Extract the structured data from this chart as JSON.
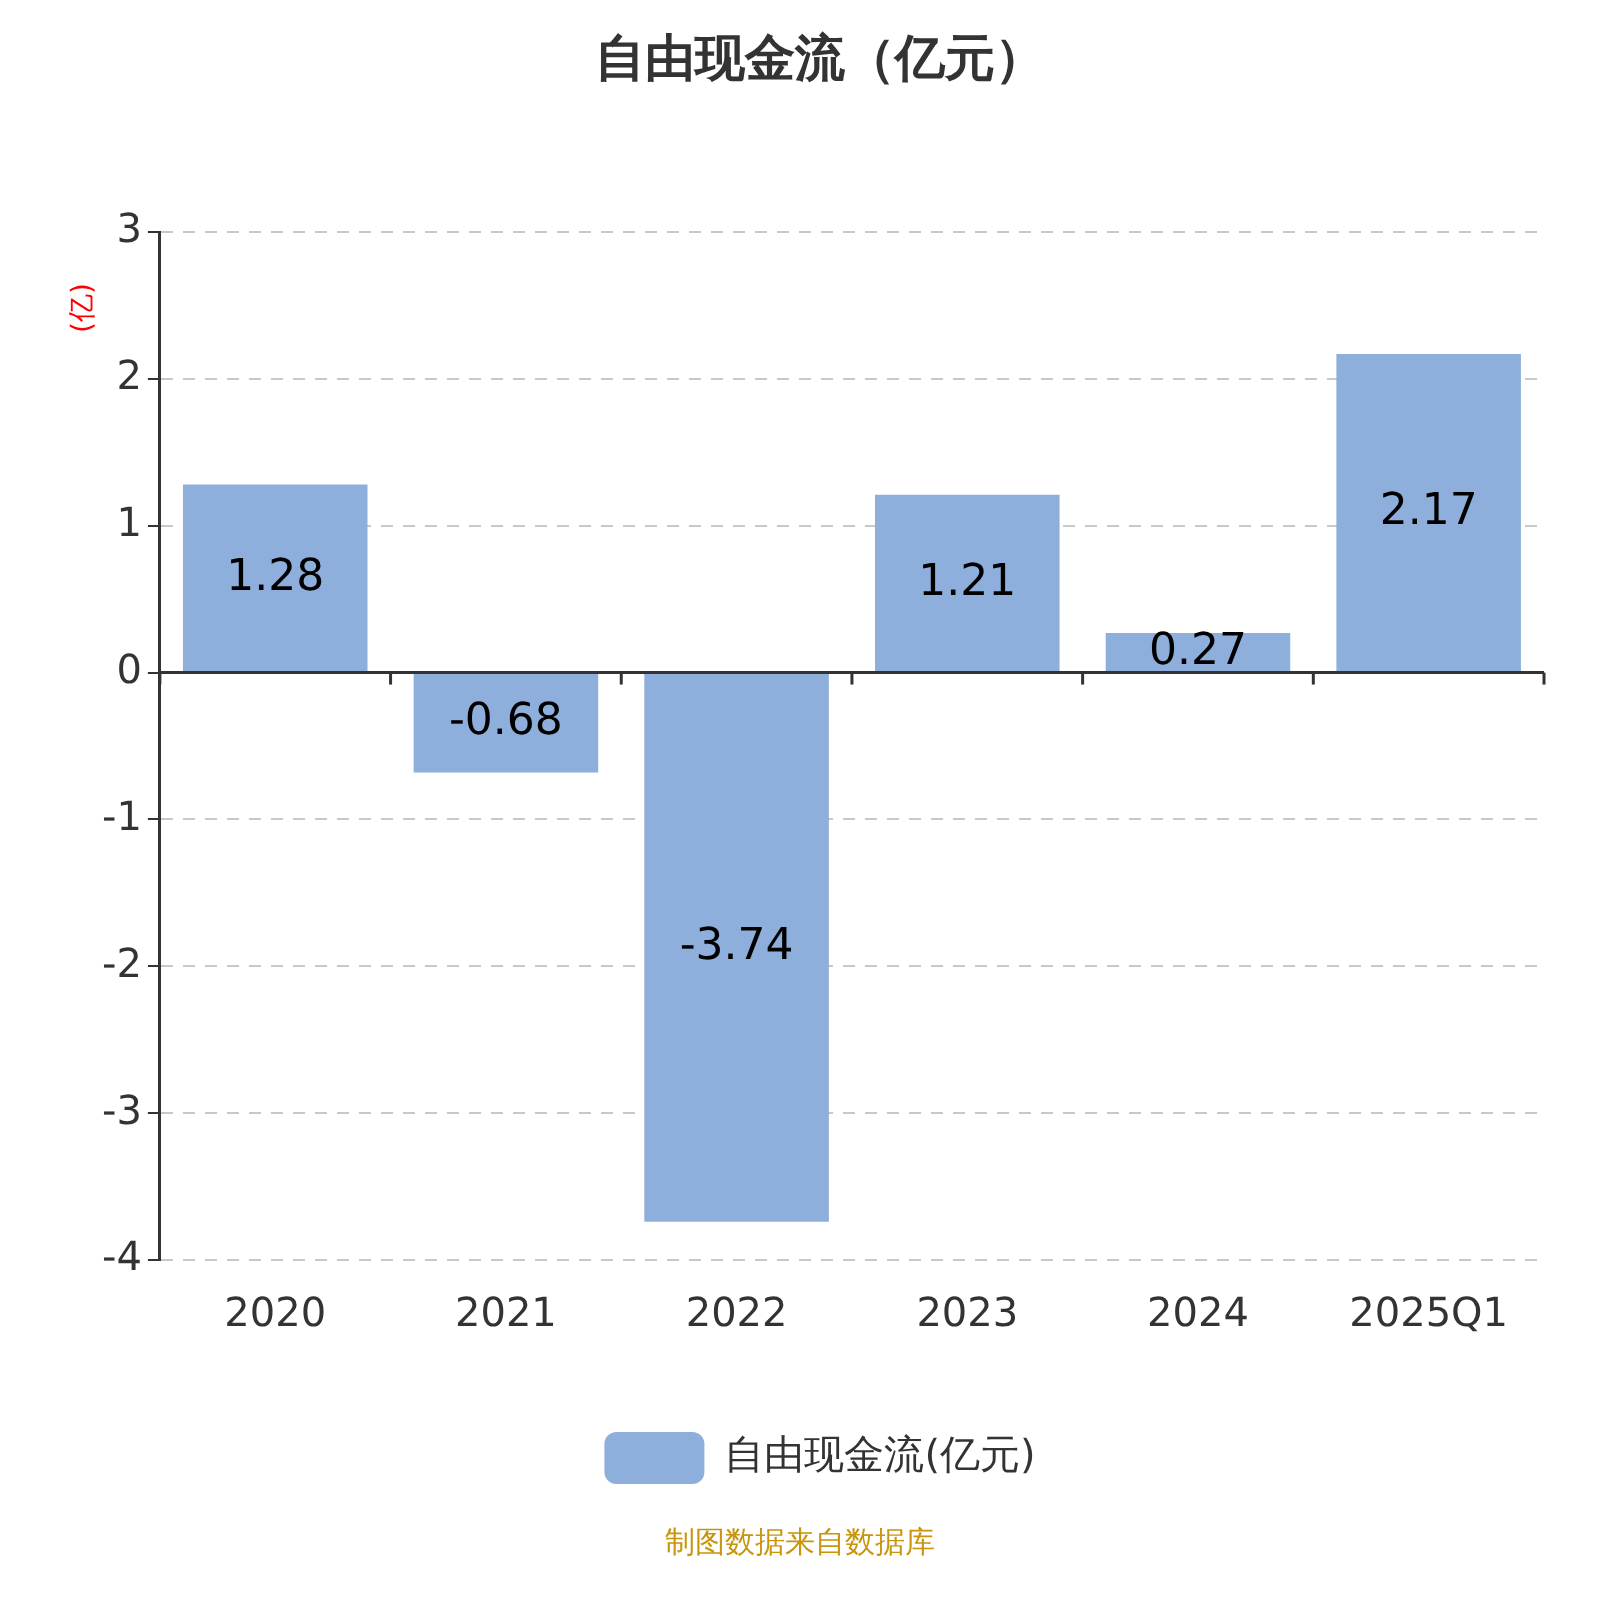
{
  "chart_data": {
    "type": "bar",
    "title": "自由现金流（亿元）",
    "ylabel": "(亿)",
    "categories": [
      "2020",
      "2021",
      "2022",
      "2023",
      "2024",
      "2025Q1"
    ],
    "series": [
      {
        "name": "自由现金流(亿元)",
        "color": "#8eaedb",
        "values": [
          1.28,
          -0.68,
          -3.74,
          1.21,
          0.27,
          2.17
        ]
      }
    ],
    "ylim": [
      -4,
      3
    ],
    "yticks": [
      -4,
      -3,
      -2,
      -1,
      0,
      1,
      2,
      3
    ],
    "grid": "y",
    "legend": "bottom",
    "data_labels": true,
    "annotations": [
      "制图数据来自数据库"
    ]
  }
}
